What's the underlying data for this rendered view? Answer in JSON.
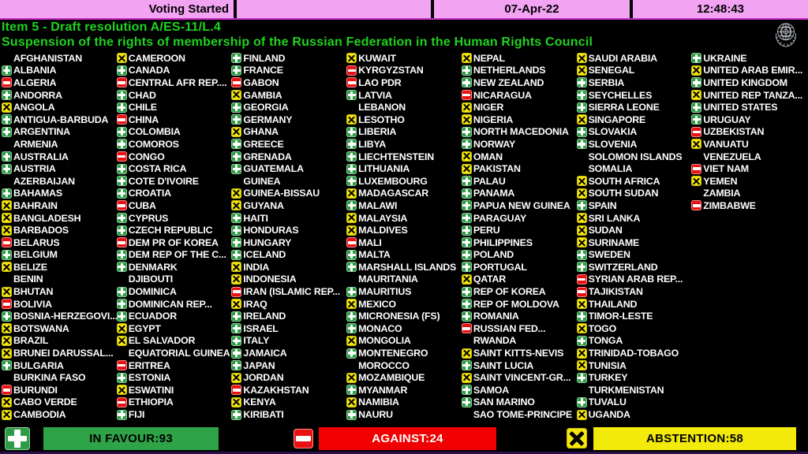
{
  "top_bar": {
    "status": "Voting Started",
    "date": "07-Apr-22",
    "time": "12:48:43"
  },
  "header": {
    "line1": "Item 5 - Draft resolution A/ES-11/L.4",
    "line2": "Suspension of the rights of membership of the Russian Federation in the Human Rights Council"
  },
  "icons": {
    "favour": "green-rounded-square-white-plus",
    "against": "red-rounded-square-white-minus",
    "abstain": "yellow-rounded-square-black-x",
    "emblem": "un-emblem-globe-laurel"
  },
  "colors": {
    "status_bar_pink": "#f2a3f2",
    "title_green": "#1fd41f",
    "favour_green": "#2e9c45",
    "against_red": "#e81111",
    "abstain_yellow": "#f5e70c",
    "summary_green_bar": "#2fa347",
    "summary_red_bar": "#f00000",
    "summary_yellow_bar": "#f2ea0a",
    "country_text": "#ffffff"
  },
  "summary": {
    "in_favour": 93,
    "against": 24,
    "abstention": 58,
    "in_favour_label": "IN FAVOUR:93",
    "against_label": "AGAINST:24",
    "abstention_label": "ABSTENTION:58"
  },
  "board": {
    "columns": [
      [
        {
          "n": "AFGHANISTAN",
          "v": "none"
        },
        {
          "n": "ALBANIA",
          "v": "favour"
        },
        {
          "n": "ALGERIA",
          "v": "against"
        },
        {
          "n": "ANDORRA",
          "v": "favour"
        },
        {
          "n": "ANGOLA",
          "v": "abstain"
        },
        {
          "n": "ANTIGUA-BARBUDA",
          "v": "favour"
        },
        {
          "n": "ARGENTINA",
          "v": "favour"
        },
        {
          "n": "ARMENIA",
          "v": "none"
        },
        {
          "n": "AUSTRALIA",
          "v": "favour"
        },
        {
          "n": "AUSTRIA",
          "v": "favour"
        },
        {
          "n": "AZERBAIJAN",
          "v": "none"
        },
        {
          "n": "BAHAMAS",
          "v": "favour"
        },
        {
          "n": "BAHRAIN",
          "v": "abstain"
        },
        {
          "n": "BANGLADESH",
          "v": "abstain"
        },
        {
          "n": "BARBADOS",
          "v": "abstain"
        },
        {
          "n": "BELARUS",
          "v": "against"
        },
        {
          "n": "BELGIUM",
          "v": "favour"
        },
        {
          "n": "BELIZE",
          "v": "abstain"
        },
        {
          "n": "BENIN",
          "v": "none"
        },
        {
          "n": "BHUTAN",
          "v": "abstain"
        },
        {
          "n": "BOLIVIA",
          "v": "against"
        },
        {
          "n": "BOSNIA-HERZEGOVI...",
          "v": "favour"
        },
        {
          "n": "BOTSWANA",
          "v": "abstain"
        },
        {
          "n": "BRAZIL",
          "v": "abstain"
        },
        {
          "n": "BRUNEI DARUSSAL...",
          "v": "abstain"
        },
        {
          "n": "BULGARIA",
          "v": "favour"
        },
        {
          "n": "BURKINA FASO",
          "v": "none"
        },
        {
          "n": "BURUNDI",
          "v": "against"
        },
        {
          "n": "CABO VERDE",
          "v": "abstain"
        },
        {
          "n": "CAMBODIA",
          "v": "abstain"
        }
      ],
      [
        {
          "n": "CAMEROON",
          "v": "abstain"
        },
        {
          "n": "CANADA",
          "v": "favour"
        },
        {
          "n": "CENTRAL AFR REP....",
          "v": "against"
        },
        {
          "n": "CHAD",
          "v": "favour"
        },
        {
          "n": "CHILE",
          "v": "favour"
        },
        {
          "n": "CHINA",
          "v": "against"
        },
        {
          "n": "COLOMBIA",
          "v": "favour"
        },
        {
          "n": "COMOROS",
          "v": "favour"
        },
        {
          "n": "CONGO",
          "v": "against"
        },
        {
          "n": "COSTA RICA",
          "v": "favour"
        },
        {
          "n": "COTE D'IVOIRE",
          "v": "favour"
        },
        {
          "n": "CROATIA",
          "v": "favour"
        },
        {
          "n": "CUBA",
          "v": "against"
        },
        {
          "n": "CYPRUS",
          "v": "favour"
        },
        {
          "n": "CZECH REPUBLIC",
          "v": "favour"
        },
        {
          "n": "DEM PR OF KOREA",
          "v": "against"
        },
        {
          "n": "DEM REP OF THE C...",
          "v": "favour"
        },
        {
          "n": "DENMARK",
          "v": "favour"
        },
        {
          "n": "DJIBOUTI",
          "v": "none"
        },
        {
          "n": "DOMINICA",
          "v": "favour"
        },
        {
          "n": "DOMINICAN REP...",
          "v": "favour"
        },
        {
          "n": "ECUADOR",
          "v": "favour"
        },
        {
          "n": "EGYPT",
          "v": "abstain"
        },
        {
          "n": "EL SALVADOR",
          "v": "abstain"
        },
        {
          "n": "EQUATORIAL GUINEA",
          "v": "none"
        },
        {
          "n": "ERITREA",
          "v": "against"
        },
        {
          "n": "ESTONIA",
          "v": "favour"
        },
        {
          "n": "ESWATINI",
          "v": "abstain"
        },
        {
          "n": "ETHIOPIA",
          "v": "against"
        },
        {
          "n": "FIJI",
          "v": "favour"
        }
      ],
      [
        {
          "n": "FINLAND",
          "v": "favour"
        },
        {
          "n": "FRANCE",
          "v": "favour"
        },
        {
          "n": "GABON",
          "v": "against"
        },
        {
          "n": "GAMBIA",
          "v": "abstain"
        },
        {
          "n": "GEORGIA",
          "v": "favour"
        },
        {
          "n": "GERMANY",
          "v": "favour"
        },
        {
          "n": "GHANA",
          "v": "abstain"
        },
        {
          "n": "GREECE",
          "v": "favour"
        },
        {
          "n": "GRENADA",
          "v": "favour"
        },
        {
          "n": "GUATEMALA",
          "v": "favour"
        },
        {
          "n": "GUINEA",
          "v": "none"
        },
        {
          "n": "GUINEA-BISSAU",
          "v": "abstain"
        },
        {
          "n": "GUYANA",
          "v": "abstain"
        },
        {
          "n": "HAITI",
          "v": "favour"
        },
        {
          "n": "HONDURAS",
          "v": "favour"
        },
        {
          "n": "HUNGARY",
          "v": "favour"
        },
        {
          "n": "ICELAND",
          "v": "favour"
        },
        {
          "n": "INDIA",
          "v": "abstain"
        },
        {
          "n": "INDONESIA",
          "v": "abstain"
        },
        {
          "n": "IRAN (ISLAMIC REP...",
          "v": "against"
        },
        {
          "n": "IRAQ",
          "v": "abstain"
        },
        {
          "n": "IRELAND",
          "v": "favour"
        },
        {
          "n": "ISRAEL",
          "v": "favour"
        },
        {
          "n": "ITALY",
          "v": "favour"
        },
        {
          "n": "JAMAICA",
          "v": "favour"
        },
        {
          "n": "JAPAN",
          "v": "favour"
        },
        {
          "n": "JORDAN",
          "v": "abstain"
        },
        {
          "n": "KAZAKHSTAN",
          "v": "against"
        },
        {
          "n": "KENYA",
          "v": "abstain"
        },
        {
          "n": "KIRIBATI",
          "v": "favour"
        }
      ],
      [
        {
          "n": "KUWAIT",
          "v": "abstain"
        },
        {
          "n": "KYRGYZSTAN",
          "v": "against"
        },
        {
          "n": "LAO PDR",
          "v": "against"
        },
        {
          "n": "LATVIA",
          "v": "favour"
        },
        {
          "n": "LEBANON",
          "v": "none"
        },
        {
          "n": "LESOTHO",
          "v": "abstain"
        },
        {
          "n": "LIBERIA",
          "v": "favour"
        },
        {
          "n": "LIBYA",
          "v": "favour"
        },
        {
          "n": "LIECHTENSTEIN",
          "v": "favour"
        },
        {
          "n": "LITHUANIA",
          "v": "favour"
        },
        {
          "n": "LUXEMBOURG",
          "v": "favour"
        },
        {
          "n": "MADAGASCAR",
          "v": "abstain"
        },
        {
          "n": "MALAWI",
          "v": "favour"
        },
        {
          "n": "MALAYSIA",
          "v": "abstain"
        },
        {
          "n": "MALDIVES",
          "v": "abstain"
        },
        {
          "n": "MALI",
          "v": "against"
        },
        {
          "n": "MALTA",
          "v": "favour"
        },
        {
          "n": "MARSHALL ISLANDS",
          "v": "favour"
        },
        {
          "n": "MAURITANIA",
          "v": "none"
        },
        {
          "n": "MAURITIUS",
          "v": "favour"
        },
        {
          "n": "MEXICO",
          "v": "abstain"
        },
        {
          "n": "MICRONESIA (FS)",
          "v": "favour"
        },
        {
          "n": "MONACO",
          "v": "favour"
        },
        {
          "n": "MONGOLIA",
          "v": "abstain"
        },
        {
          "n": "MONTENEGRO",
          "v": "favour"
        },
        {
          "n": "MOROCCO",
          "v": "none"
        },
        {
          "n": "MOZAMBIQUE",
          "v": "abstain"
        },
        {
          "n": "MYANMAR",
          "v": "favour"
        },
        {
          "n": "NAMIBIA",
          "v": "abstain"
        },
        {
          "n": "NAURU",
          "v": "favour"
        }
      ],
      [
        {
          "n": "NEPAL",
          "v": "abstain"
        },
        {
          "n": "NETHERLANDS",
          "v": "favour"
        },
        {
          "n": "NEW ZEALAND",
          "v": "favour"
        },
        {
          "n": "NICARAGUA",
          "v": "against"
        },
        {
          "n": "NIGER",
          "v": "abstain"
        },
        {
          "n": "NIGERIA",
          "v": "abstain"
        },
        {
          "n": "NORTH MACEDONIA",
          "v": "favour"
        },
        {
          "n": "NORWAY",
          "v": "favour"
        },
        {
          "n": "OMAN",
          "v": "abstain"
        },
        {
          "n": "PAKISTAN",
          "v": "abstain"
        },
        {
          "n": "PALAU",
          "v": "favour"
        },
        {
          "n": "PANAMA",
          "v": "favour"
        },
        {
          "n": "PAPUA NEW GUINEA",
          "v": "favour"
        },
        {
          "n": "PARAGUAY",
          "v": "favour"
        },
        {
          "n": "PERU",
          "v": "favour"
        },
        {
          "n": "PHILIPPINES",
          "v": "favour"
        },
        {
          "n": "POLAND",
          "v": "favour"
        },
        {
          "n": "PORTUGAL",
          "v": "favour"
        },
        {
          "n": "QATAR",
          "v": "abstain"
        },
        {
          "n": "REP OF KOREA",
          "v": "favour"
        },
        {
          "n": "REP OF MOLDOVA",
          "v": "favour"
        },
        {
          "n": "ROMANIA",
          "v": "favour"
        },
        {
          "n": "RUSSIAN FED...",
          "v": "against"
        },
        {
          "n": "RWANDA",
          "v": "none"
        },
        {
          "n": "SAINT KITTS-NEVIS",
          "v": "abstain"
        },
        {
          "n": "SAINT LUCIA",
          "v": "favour"
        },
        {
          "n": "SAINT VINCENT-GR...",
          "v": "abstain"
        },
        {
          "n": "SAMOA",
          "v": "favour"
        },
        {
          "n": "SAN MARINO",
          "v": "favour"
        },
        {
          "n": "SAO TOME-PRINCIPE",
          "v": "none"
        }
      ],
      [
        {
          "n": "SAUDI ARABIA",
          "v": "abstain"
        },
        {
          "n": "SENEGAL",
          "v": "abstain"
        },
        {
          "n": "SERBIA",
          "v": "favour"
        },
        {
          "n": "SEYCHELLES",
          "v": "favour"
        },
        {
          "n": "SIERRA LEONE",
          "v": "favour"
        },
        {
          "n": "SINGAPORE",
          "v": "abstain"
        },
        {
          "n": "SLOVAKIA",
          "v": "favour"
        },
        {
          "n": "SLOVENIA",
          "v": "favour"
        },
        {
          "n": "SOLOMON ISLANDS",
          "v": "none"
        },
        {
          "n": "SOMALIA",
          "v": "none"
        },
        {
          "n": "SOUTH AFRICA",
          "v": "abstain"
        },
        {
          "n": "SOUTH SUDAN",
          "v": "abstain"
        },
        {
          "n": "SPAIN",
          "v": "favour"
        },
        {
          "n": "SRI LANKA",
          "v": "abstain"
        },
        {
          "n": "SUDAN",
          "v": "abstain"
        },
        {
          "n": "SURINAME",
          "v": "abstain"
        },
        {
          "n": "SWEDEN",
          "v": "favour"
        },
        {
          "n": "SWITZERLAND",
          "v": "favour"
        },
        {
          "n": "SYRIAN ARAB REP...",
          "v": "against"
        },
        {
          "n": "TAJIKISTAN",
          "v": "against"
        },
        {
          "n": "THAILAND",
          "v": "abstain"
        },
        {
          "n": "TIMOR-LESTE",
          "v": "favour"
        },
        {
          "n": "TOGO",
          "v": "abstain"
        },
        {
          "n": "TONGA",
          "v": "favour"
        },
        {
          "n": "TRINIDAD-TOBAGO",
          "v": "abstain"
        },
        {
          "n": "TUNISIA",
          "v": "abstain"
        },
        {
          "n": "TURKEY",
          "v": "favour"
        },
        {
          "n": "TURKMENISTAN",
          "v": "none"
        },
        {
          "n": "TUVALU",
          "v": "favour"
        },
        {
          "n": "UGANDA",
          "v": "abstain"
        }
      ],
      [
        {
          "n": "UKRAINE",
          "v": "favour"
        },
        {
          "n": "UNITED ARAB EMIR...",
          "v": "abstain"
        },
        {
          "n": "UNITED KINGDOM",
          "v": "favour"
        },
        {
          "n": "UNITED REP TANZA...",
          "v": "abstain"
        },
        {
          "n": "UNITED STATES",
          "v": "favour"
        },
        {
          "n": "URUGUAY",
          "v": "favour"
        },
        {
          "n": "UZBEKISTAN",
          "v": "against"
        },
        {
          "n": "VANUATU",
          "v": "abstain"
        },
        {
          "n": "VENEZUELA",
          "v": "none"
        },
        {
          "n": "VIET NAM",
          "v": "against"
        },
        {
          "n": "YEMEN",
          "v": "abstain"
        },
        {
          "n": "ZAMBIA",
          "v": "none"
        },
        {
          "n": "ZIMBABWE",
          "v": "against"
        }
      ]
    ]
  }
}
